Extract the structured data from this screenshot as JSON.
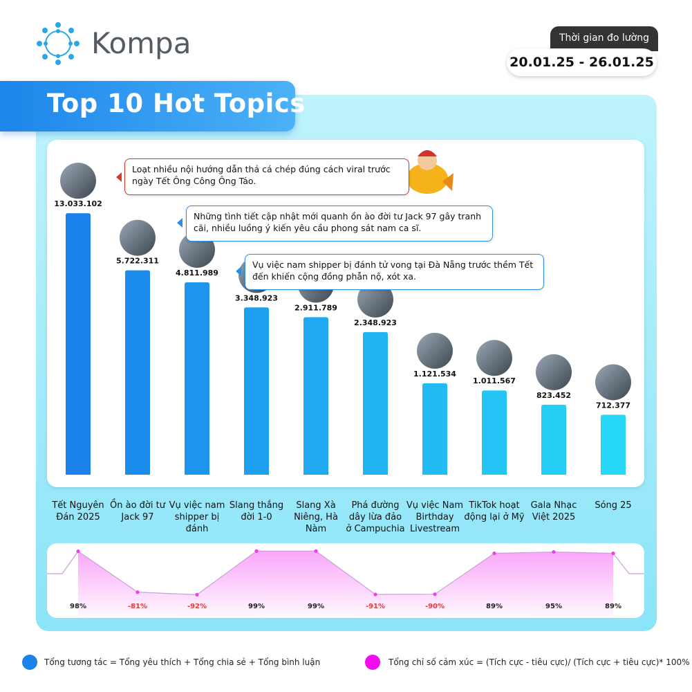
{
  "brand": "Kompa",
  "period_label": "Thời gian đo lường",
  "period": "20.01.25 - 26.01.25",
  "title": "Top 10 Hot Topics",
  "annotations": [
    "Loạt nhiều nội hướng dẫn thả cá chép đúng cách viral trước ngày Tết Ông Công Ông Táo.",
    "Những tình tiết cập nhật mới quanh ồn ào đời tư Jack 97 gây tranh cãi, nhiều luồng ý kiến yêu cầu phong sát nam ca sĩ.",
    "Vụ việc nam shipper bị đánh tử vong tại Đà Nẵng trước thềm Tết đến khiến cộng đồng phẫn nộ, xót xa."
  ],
  "chart_data": [
    {
      "type": "bar",
      "categories": [
        "Tết Nguyên Đán 2025",
        "Ồn ào đời tư Jack 97",
        "Vụ việc nam shipper bị đánh",
        "Slang thắng đời 1-0",
        "Slang Xà Niêng, Hà Nàm",
        "Phá đường dây lừa đảo ở Campuchia",
        "Vụ việc Nam Birthday Livestream",
        "TikTok hoạt động lại ở Mỹ",
        "Gala Nhạc Việt 2025",
        "Sóng 25"
      ],
      "values": [
        13033102,
        5722311,
        4811989,
        3348923,
        2911789,
        2348923,
        1121534,
        1011567,
        823452,
        712377
      ],
      "value_labels": [
        "13.033.102",
        "5.722.311",
        "4.811.989",
        "3.348.923",
        "2.911.789",
        "2.348.923",
        "1.121.534",
        "1.011.567",
        "823.452",
        "712.377"
      ],
      "ylim": [
        300000,
        14000000
      ],
      "log_scale": true,
      "colors": [
        "#1a82ea",
        "#27d8f8"
      ],
      "legend": "Tổng tương tác = Tổng yêu thích + Tổng chia sẻ + Tổng bình luận",
      "legend_color": "#1a82ea"
    },
    {
      "type": "line",
      "values": [
        98,
        -81,
        -92,
        99,
        99,
        -91,
        -90,
        89,
        95,
        89
      ],
      "value_labels": [
        "98%",
        "-81%",
        "-92%",
        "99%",
        "99%",
        "-91%",
        "-90%",
        "89%",
        "95%",
        "89%"
      ],
      "ylim": [
        -100,
        100
      ],
      "color": "#f23cf0",
      "negative_label_color": "#e53935",
      "legend": "Tổng chỉ số cảm xúc = (Tích cực - tiêu cực)/ (Tích cực + tiêu cực)* 100%",
      "legend_color": "#f20df0"
    }
  ]
}
